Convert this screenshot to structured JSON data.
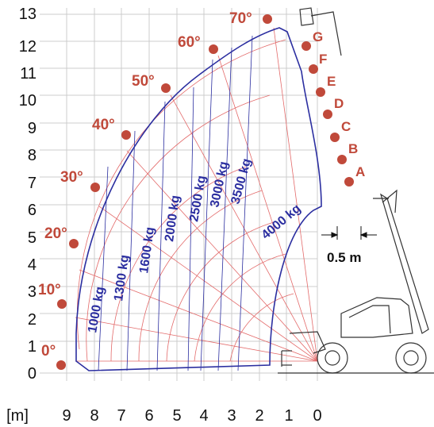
{
  "chart_data": {
    "type": "diagram",
    "y_axis": {
      "ticks": [
        "0",
        "1",
        "2",
        "3",
        "4",
        "5",
        "6",
        "7",
        "8",
        "9",
        "10",
        "11",
        "12",
        "13"
      ]
    },
    "x_axis": {
      "unit_label": "[m]",
      "ticks": [
        "9",
        "8",
        "7",
        "6",
        "5",
        "4",
        "3",
        "2",
        "1",
        "0"
      ]
    },
    "angles": [
      {
        "label": "0°",
        "value": 0
      },
      {
        "label": "10°",
        "value": 10
      },
      {
        "label": "20°",
        "value": 20
      },
      {
        "label": "30°",
        "value": 30
      },
      {
        "label": "40°",
        "value": 40
      },
      {
        "label": "50°",
        "value": 50
      },
      {
        "label": "60°",
        "value": 60
      },
      {
        "label": "70°",
        "value": 70
      }
    ],
    "extension_marks": [
      "A",
      "B",
      "C",
      "D",
      "E",
      "F",
      "G"
    ],
    "load_zones": [
      "1000 kg",
      "1300 kg",
      "1600 kg",
      "2000 kg",
      "2500 kg",
      "3000 kg",
      "3500 kg",
      "4000 kg"
    ],
    "offset_label": "0.5 m",
    "colors": {
      "envelope": "#2b2ea0",
      "grid": "#e36a6a",
      "angle": "#c0493a",
      "dot": "#c0493a"
    }
  }
}
